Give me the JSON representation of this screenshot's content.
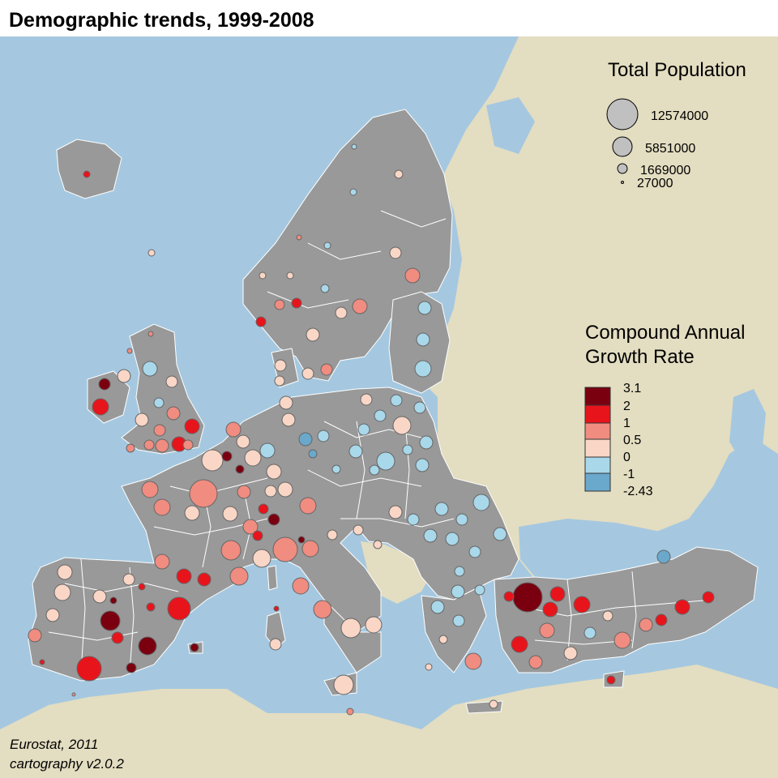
{
  "title": "Demographic trends, 1999-2008",
  "size_legend": {
    "title": "Total Population",
    "entries": [
      {
        "label": "12574000",
        "value": 12574000
      },
      {
        "label": "5851000",
        "value": 5851000
      },
      {
        "label": "1669000",
        "value": 1669000
      },
      {
        "label": "27000",
        "value": 27000
      }
    ]
  },
  "color_legend": {
    "title_line1": "Compound Annual",
    "title_line2": "Growth Rate",
    "breaks": [
      "3.1",
      "2",
      "1",
      "0.5",
      "0",
      "-1",
      "-2.43"
    ],
    "classes": [
      {
        "range": "2 to 3.1",
        "color": "#7a0010"
      },
      {
        "range": "1 to 2",
        "color": "#e8141c"
      },
      {
        "range": "0.5 to 1",
        "color": "#f08c80"
      },
      {
        "range": "0 to 0.5",
        "color": "#f9d6c6"
      },
      {
        "range": "-1 to 0",
        "color": "#a8d8ea"
      },
      {
        "range": "-2.43 to -1",
        "color": "#6aa8cc"
      }
    ]
  },
  "credits": {
    "line1": "Eurostat, 2011",
    "line2": "cartography v2.0.2"
  },
  "colors": {
    "sea": "#a5c8e0",
    "land_outside": "#e3ddc1",
    "eu_land": "#999999",
    "borders": "#ffffff"
  }
}
